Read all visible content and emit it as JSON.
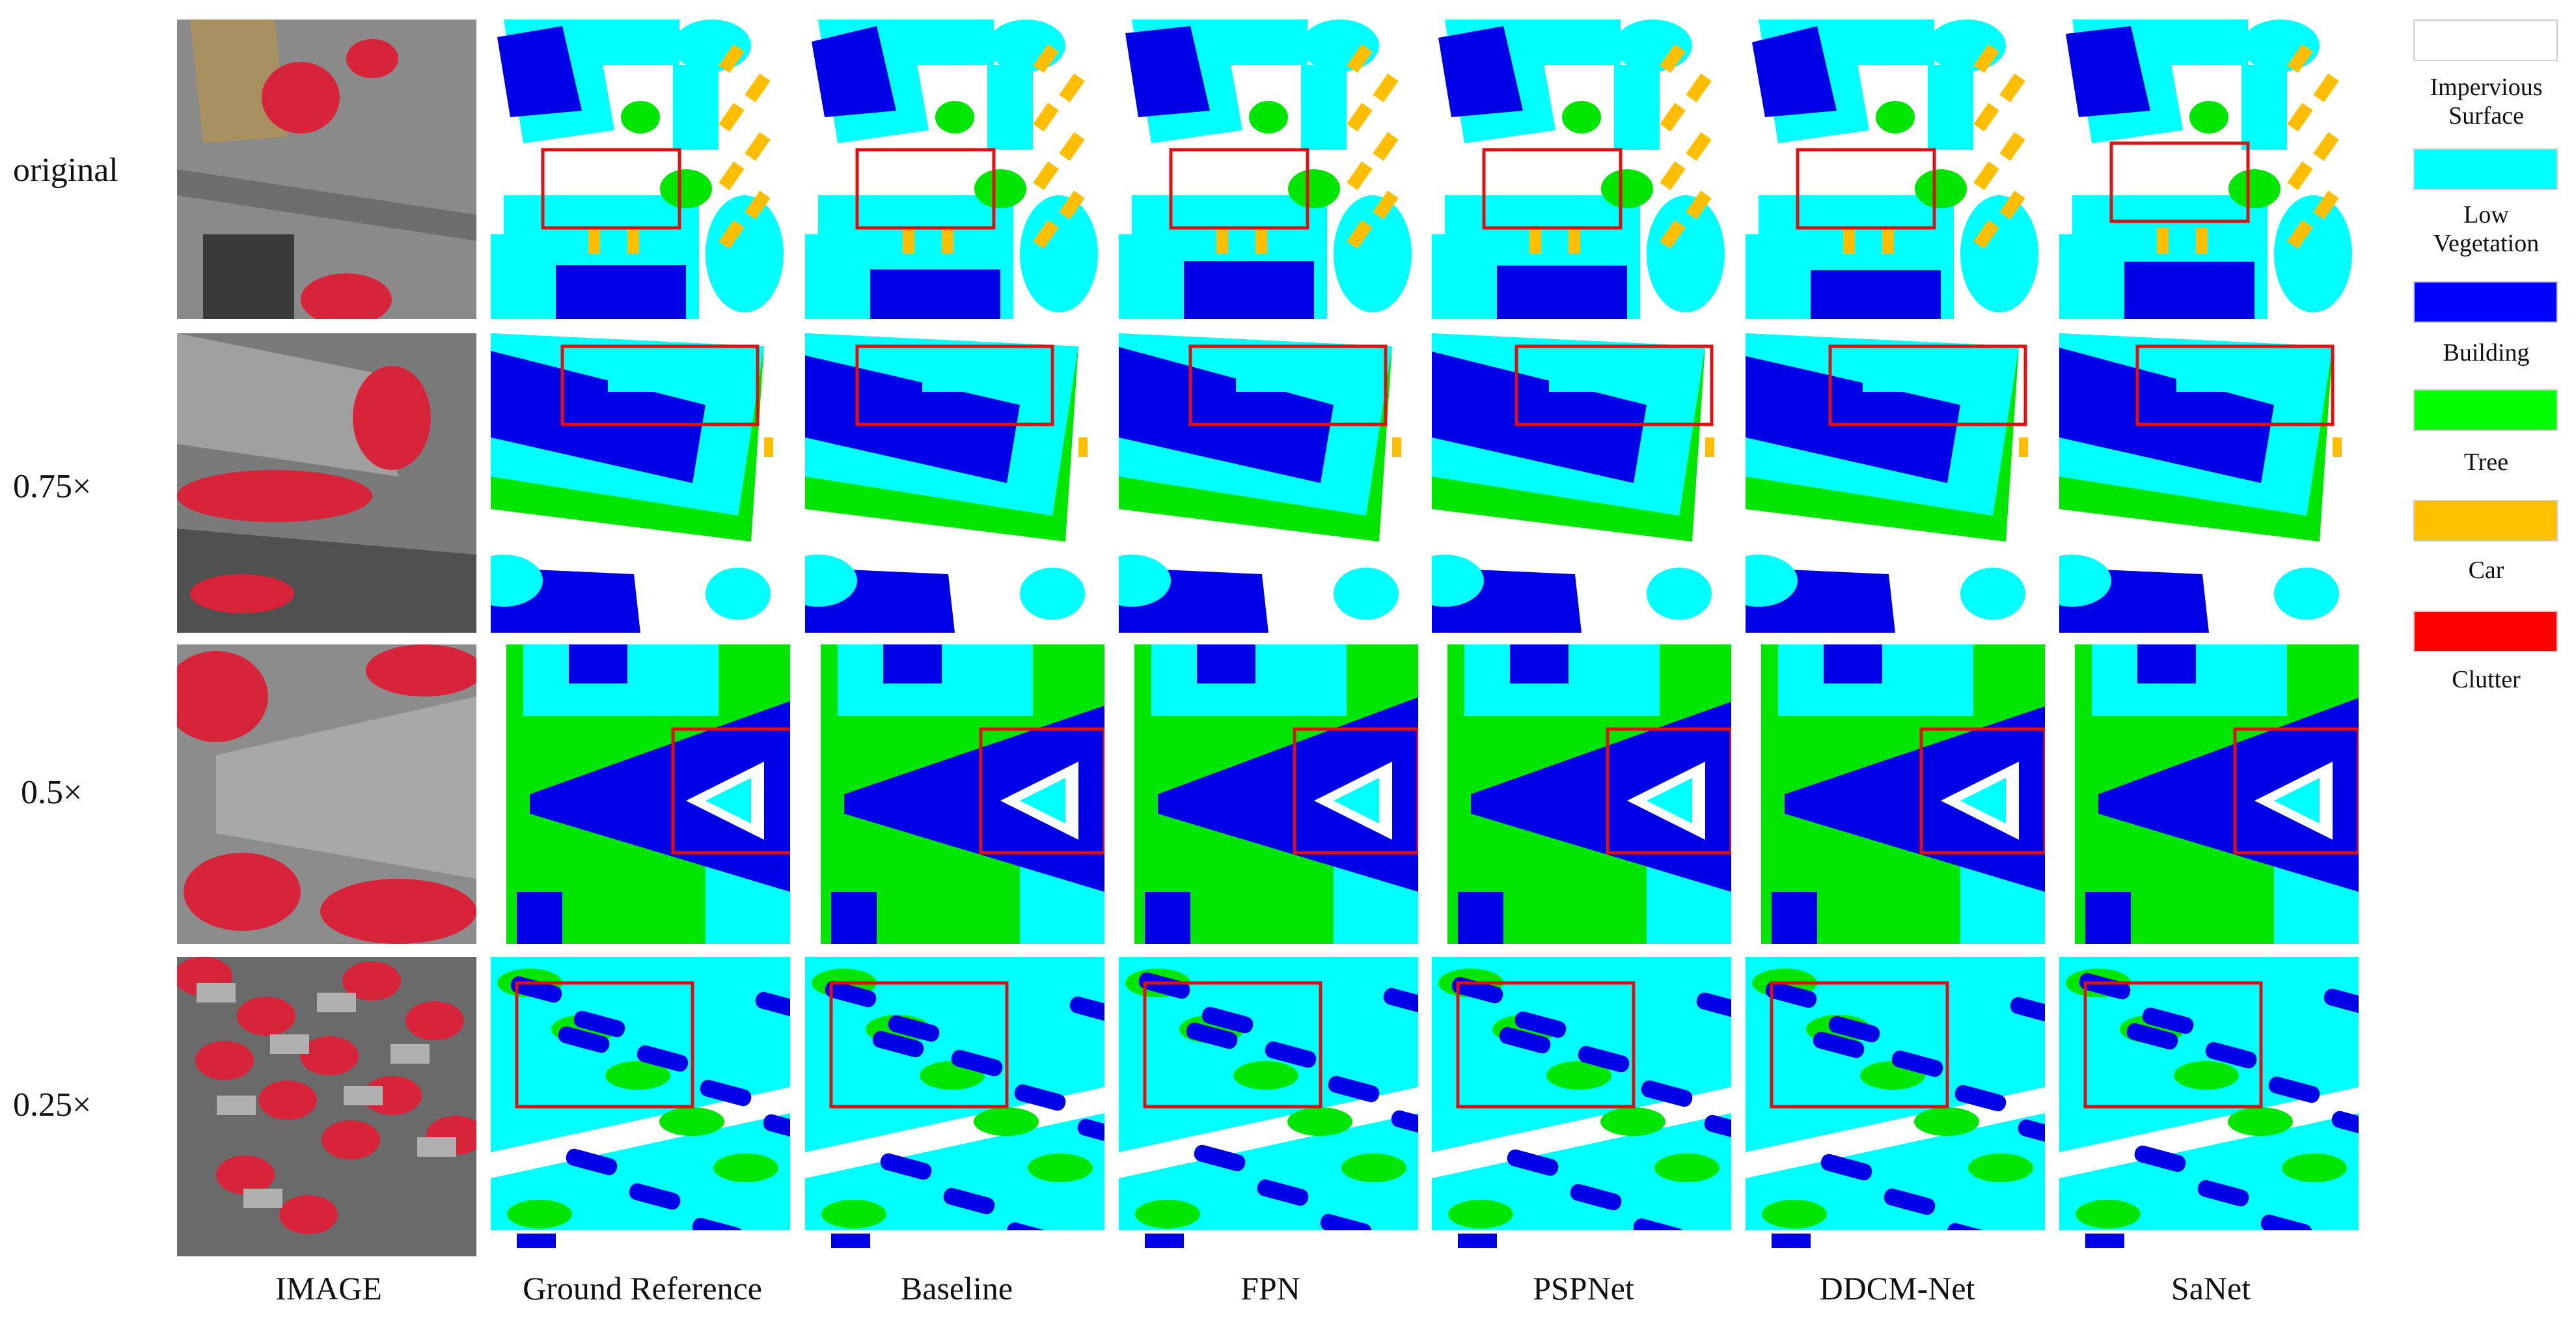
{
  "rows": [
    {
      "label": "original"
    },
    {
      "label": "0.75×"
    },
    {
      "label": "0.5×"
    },
    {
      "label": "0.25×"
    }
  ],
  "columns": [
    {
      "label": "IMAGE"
    },
    {
      "label": "Ground Reference"
    },
    {
      "label": "Baseline"
    },
    {
      "label": "FPN"
    },
    {
      "label": "PSPNet"
    },
    {
      "label": "DDCM-Net"
    },
    {
      "label": "SaNet"
    }
  ],
  "legend": [
    {
      "label_lines": [
        "Impervious",
        "Surface"
      ],
      "color": "#ffffff"
    },
    {
      "label_lines": [
        "Low",
        "Vegetation"
      ],
      "color": "#00ffff"
    },
    {
      "label_lines": [
        "Building"
      ],
      "color": "#0000ff"
    },
    {
      "label_lines": [
        "Tree"
      ],
      "color": "#00ff00"
    },
    {
      "label_lines": [
        "Car"
      ],
      "color": "#ffc000"
    },
    {
      "label_lines": [
        "Clutter"
      ],
      "color": "#ff0000"
    }
  ],
  "colors": {
    "impervious": "#ffffff",
    "low_vegetation": "#00ffff",
    "building": "#0000e6",
    "tree": "#00e600",
    "car": "#ffbf00",
    "clutter": "#ff0000",
    "highlight_box": "#e01010",
    "photo_red": "#d8243a",
    "photo_gray": "#8a8a8a"
  }
}
